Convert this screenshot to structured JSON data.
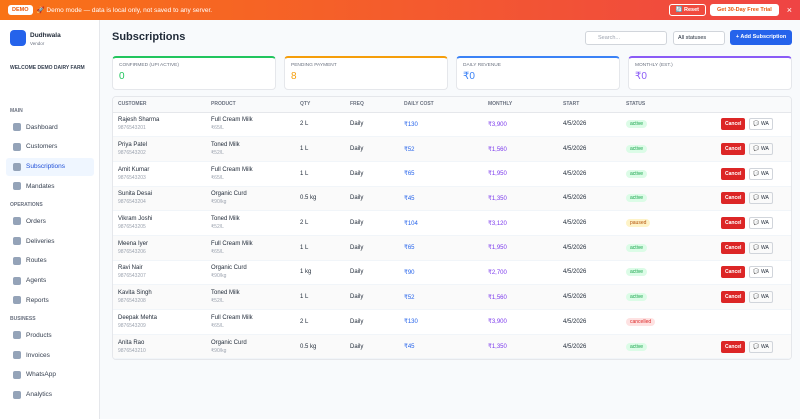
{
  "banner": {
    "badge": "DEMO",
    "text": "🚀 Demo mode — data is local only, not saved to any server.",
    "reset": "🔄 Reset",
    "trial": "Get 30-Day Free Trial",
    "close": "×"
  },
  "sidebar": {
    "brand": "Dudhwala",
    "sub": "Vendor",
    "welcome": "WELCOME DEMO DAIRY FARM",
    "active": "Subscriptions",
    "sections": [
      {
        "title": "MAIN",
        "items": [
          "Dashboard",
          "Customers",
          "Subscriptions",
          "Mandates"
        ]
      },
      {
        "title": "OPERATIONS",
        "items": [
          "Orders",
          "Deliveries",
          "Routes",
          "Agents",
          "Reports"
        ]
      },
      {
        "title": "BUSINESS",
        "items": [
          "Products",
          "Invoices",
          "WhatsApp",
          "Analytics"
        ]
      }
    ]
  },
  "header": {
    "title": "Subscriptions",
    "search": "Search...",
    "filter": "All statuses",
    "add": "+ Add Subscription"
  },
  "stats": [
    {
      "label": "CONFIRMED (UPI ACTIVE)",
      "value": "0",
      "color": "#22c55e"
    },
    {
      "label": "PENDING PAYMENT",
      "value": "8",
      "color": "#f59e0b"
    },
    {
      "label": "DAILY REVENUE",
      "value": "₹0",
      "color": "#3b82f6"
    },
    {
      "label": "MONTHLY (EST.)",
      "value": "₹0",
      "color": "#8b5cf6"
    }
  ],
  "table": {
    "headers": [
      "CUSTOMER",
      "PRODUCT",
      "QTY",
      "FREQ",
      "DAILY COST",
      "MONTHLY",
      "START",
      "STATUS"
    ],
    "rows": [
      {
        "name": "Rajesh Sharma",
        "phone": "9876543201",
        "product": "Full Cream Milk",
        "price": "₹65/L",
        "qty": "2 L",
        "freq": "Daily",
        "daily": "₹130",
        "monthly": "₹3,900",
        "start": "4/5/2026",
        "status": "active",
        "status_color": "#16a34a",
        "status_bg": "#dcfce7",
        "actions": [
          "Cancel",
          "💬 WA"
        ]
      },
      {
        "name": "Priya Patel",
        "phone": "9876543202",
        "product": "Toned Milk",
        "price": "₹52/L",
        "qty": "1 L",
        "freq": "Daily",
        "daily": "₹52",
        "monthly": "₹1,560",
        "start": "4/5/2026",
        "status": "active",
        "status_color": "#16a34a",
        "status_bg": "#dcfce7",
        "actions": [
          "Cancel",
          "💬 WA"
        ]
      },
      {
        "name": "Amit Kumar",
        "phone": "9876543203",
        "product": "Full Cream Milk",
        "price": "₹65/L",
        "qty": "1 L",
        "freq": "Daily",
        "daily": "₹65",
        "monthly": "₹1,950",
        "start": "4/5/2026",
        "status": "active",
        "status_color": "#16a34a",
        "status_bg": "#dcfce7",
        "actions": [
          "Cancel",
          "💬 WA"
        ]
      },
      {
        "name": "Sunita Desai",
        "phone": "9876543204",
        "product": "Organic Curd",
        "price": "₹90/kg",
        "qty": "0.5 kg",
        "freq": "Daily",
        "daily": "₹45",
        "monthly": "₹1,350",
        "start": "4/5/2026",
        "status": "active",
        "status_color": "#16a34a",
        "status_bg": "#dcfce7",
        "actions": [
          "Cancel",
          "💬 WA"
        ]
      },
      {
        "name": "Vikram Joshi",
        "phone": "9876543205",
        "product": "Toned Milk",
        "price": "₹52/L",
        "qty": "2 L",
        "freq": "Daily",
        "daily": "₹104",
        "monthly": "₹3,120",
        "start": "4/5/2026",
        "status": "paused",
        "status_color": "#b45309",
        "status_bg": "#fef3c7",
        "actions": [
          "Cancel",
          "💬 WA"
        ]
      },
      {
        "name": "Meena Iyer",
        "phone": "9876543206",
        "product": "Full Cream Milk",
        "price": "₹65/L",
        "qty": "1 L",
        "freq": "Daily",
        "daily": "₹65",
        "monthly": "₹1,950",
        "start": "4/5/2026",
        "status": "active",
        "status_color": "#16a34a",
        "status_bg": "#dcfce7",
        "actions": [
          "Cancel",
          "💬 WA"
        ]
      },
      {
        "name": "Ravi Nair",
        "phone": "9876543207",
        "product": "Organic Curd",
        "price": "₹90/kg",
        "qty": "1 kg",
        "freq": "Daily",
        "daily": "₹90",
        "monthly": "₹2,700",
        "start": "4/5/2026",
        "status": "active",
        "status_color": "#16a34a",
        "status_bg": "#dcfce7",
        "actions": [
          "Cancel",
          "💬 WA"
        ]
      },
      {
        "name": "Kavita Singh",
        "phone": "9876543208",
        "product": "Toned Milk",
        "price": "₹52/L",
        "qty": "1 L",
        "freq": "Daily",
        "daily": "₹52",
        "monthly": "₹1,560",
        "start": "4/5/2026",
        "status": "active",
        "status_color": "#16a34a",
        "status_bg": "#dcfce7",
        "actions": [
          "Cancel",
          "💬 WA"
        ]
      },
      {
        "name": "Deepak Mehta",
        "phone": "9876543209",
        "product": "Full Cream Milk",
        "price": "₹65/L",
        "qty": "2 L",
        "freq": "Daily",
        "daily": "₹130",
        "monthly": "₹3,900",
        "start": "4/5/2026",
        "status": "cancelled",
        "status_color": "#dc2626",
        "status_bg": "#fee2e2"
      },
      {
        "name": "Anita Rao",
        "phone": "9876543210",
        "product": "Organic Curd",
        "price": "₹90/kg",
        "qty": "0.5 kg",
        "freq": "Daily",
        "daily": "₹45",
        "monthly": "₹1,350",
        "start": "4/5/2026",
        "status": "active",
        "status_color": "#16a34a",
        "status_bg": "#dcfce7",
        "actions": [
          "Cancel",
          "💬 WA"
        ]
      }
    ]
  }
}
